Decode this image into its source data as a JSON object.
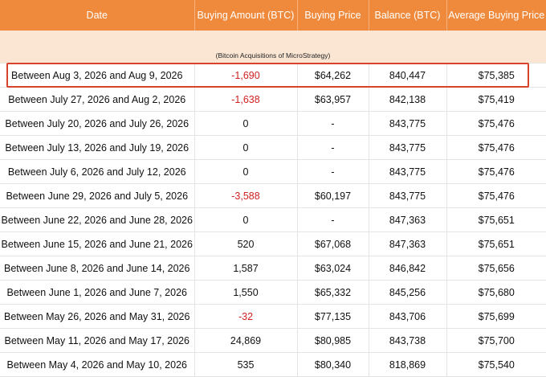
{
  "header": {
    "date": "Date",
    "buying_amount": "Buying Amount (BTC)",
    "buying_price": "Buying Price",
    "balance": "Balance (BTC)",
    "average_buying_price": "Average Buying Price"
  },
  "caption": "(Bitcoin Acquisitions of MicroStrategy)",
  "colors": {
    "header_bg": "#ef8a3c",
    "caption_bg": "#fbe6d4",
    "negative": "#d11f1f",
    "highlight": "#d8432e"
  },
  "highlighted_row": 0,
  "rows": [
    {
      "date": "Between Aug 3, 2026 and Aug 9, 2026",
      "amount": "-1,690",
      "price": "$64,262",
      "balance": "840,447",
      "avg": "$75,385"
    },
    {
      "date": "Between July 27, 2026 and Aug 2, 2026",
      "amount": "-1,638",
      "price": "$63,957",
      "balance": "842,138",
      "avg": "$75,419"
    },
    {
      "date": "Between July 20, 2026 and July 26, 2026",
      "amount": "0",
      "price": "-",
      "balance": "843,775",
      "avg": "$75,476"
    },
    {
      "date": "Between July 13, 2026 and July 19, 2026",
      "amount": "0",
      "price": "-",
      "balance": "843,775",
      "avg": "$75,476"
    },
    {
      "date": "Between July 6, 2026 and July 12, 2026",
      "amount": "0",
      "price": "-",
      "balance": "843,775",
      "avg": "$75,476"
    },
    {
      "date": "Between June 29, 2026 and July 5, 2026",
      "amount": "-3,588",
      "price": "$60,197",
      "balance": "843,775",
      "avg": "$75,476"
    },
    {
      "date": "Between June 22, 2026 and June 28, 2026",
      "amount": "0",
      "price": "-",
      "balance": "847,363",
      "avg": "$75,651"
    },
    {
      "date": "Between June 15, 2026 and June 21, 2026",
      "amount": "520",
      "price": "$67,068",
      "balance": "847,363",
      "avg": "$75,651"
    },
    {
      "date": "Between June 8, 2026 and June 14, 2026",
      "amount": "1,587",
      "price": "$63,024",
      "balance": "846,842",
      "avg": "$75,656"
    },
    {
      "date": "Between June 1, 2026 and June 7, 2026",
      "amount": "1,550",
      "price": "$65,332",
      "balance": "845,256",
      "avg": "$75,680"
    },
    {
      "date": "Between May 26, 2026 and May 31, 2026",
      "amount": "-32",
      "price": "$77,135",
      "balance": "843,706",
      "avg": "$75,699"
    },
    {
      "date": "Between May 11, 2026 and May 17, 2026",
      "amount": "24,869",
      "price": "$80,985",
      "balance": "843,738",
      "avg": "$75,700"
    },
    {
      "date": "Between May 4, 2026 and May 10, 2026",
      "amount": "535",
      "price": "$80,340",
      "balance": "818,869",
      "avg": "$75,540"
    }
  ]
}
